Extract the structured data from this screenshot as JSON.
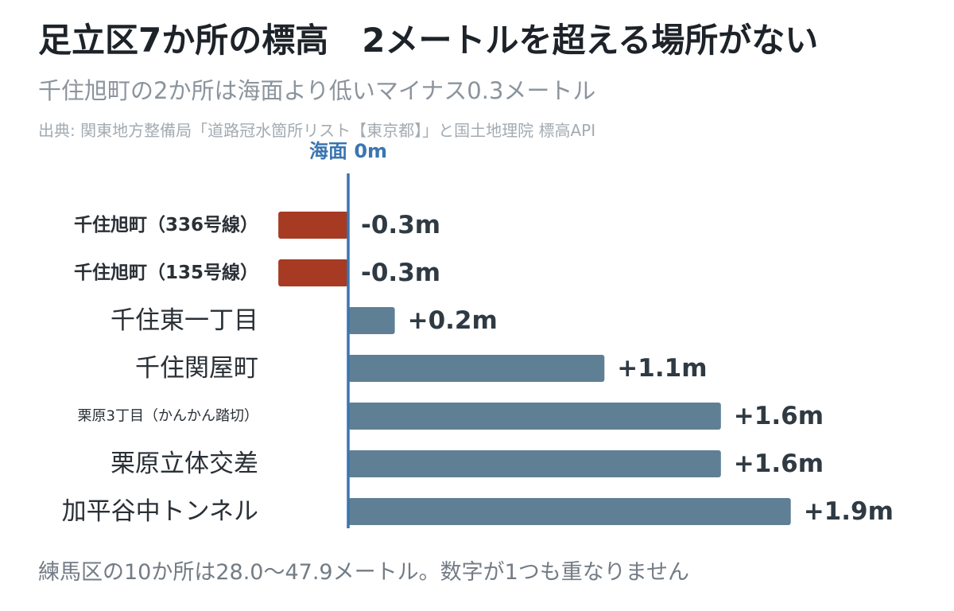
{
  "header": {
    "title": "足立区7か所の標高　2メートルを超える場所がない",
    "subtitle": "千住旭町の2か所は海面より低いマイナス0.3メートル",
    "source": "出典: 関東地方整備局「道路冠水箇所リスト【東京都】」と国土地理院 標高API"
  },
  "footnote": "練馬区の10か所は28.0〜47.9メートル。数字が1つも重なりません",
  "colors": {
    "negative": "#a73a22",
    "positive": "#5f7f95",
    "zero_line": "#3a75b0"
  },
  "chart_data": {
    "type": "bar",
    "orientation": "horizontal",
    "zero_line_label": "海面 0m",
    "categories": [
      "千住旭町（336号線）",
      "千住旭町（135号線）",
      "千住東一丁目",
      "千住関屋町",
      "栗原3丁目（かんかん踏切）",
      "栗原立体交差",
      "加平谷中トンネル"
    ],
    "values": [
      -0.3,
      -0.3,
      0.2,
      1.1,
      1.6,
      1.6,
      1.9
    ],
    "value_labels": [
      "-0.3m",
      "-0.3m",
      "+0.2m",
      "+1.1m",
      "+1.6m",
      "+1.6m",
      "+1.9m"
    ],
    "label_style": [
      "bold",
      "bold",
      "large",
      "large",
      "small",
      "large",
      "large"
    ],
    "xlim": [
      -0.3,
      1.9
    ],
    "grid": false,
    "legend": "none"
  }
}
